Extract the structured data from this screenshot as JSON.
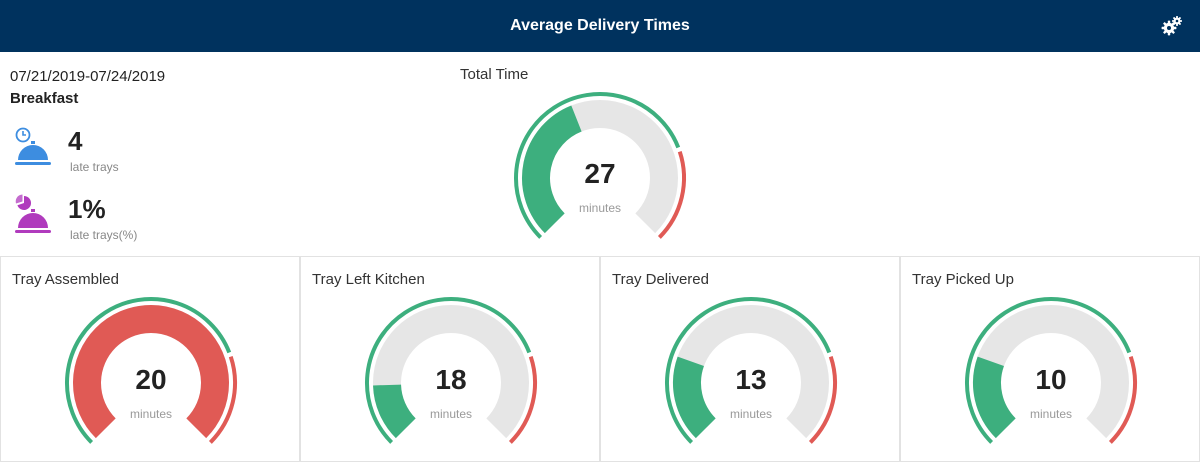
{
  "header": {
    "title": "Average Delivery Times",
    "settings_icon": "gears-icon"
  },
  "summary": {
    "date_range": "07/21/2019-07/24/2019",
    "meal": "Breakfast",
    "late_trays": {
      "value": "4",
      "label": "late trays",
      "icon": "clock-cloche-icon",
      "color": "#3d8de0"
    },
    "late_trays_pct": {
      "value": "1%",
      "label": "late trays(%)",
      "icon": "pie-cloche-icon",
      "color": "#b03bbd"
    }
  },
  "colors": {
    "good": "#3daf7e",
    "bad": "#e05a55",
    "track": "#e6e6e6",
    "header_bg": "#00325e"
  },
  "main_gauge": {
    "title": "Total Time",
    "value": "27",
    "unit": "minutes",
    "fill_fraction": 0.42,
    "fill_color": "good"
  },
  "gauges": [
    {
      "title": "Tray Assembled",
      "value": "20",
      "unit": "minutes",
      "fill_fraction": 1.0,
      "fill_color": "bad"
    },
    {
      "title": "Tray Left Kitchen",
      "value": "18",
      "unit": "minutes",
      "fill_fraction": 0.16,
      "fill_color": "good"
    },
    {
      "title": "Tray Delivered",
      "value": "13",
      "unit": "minutes",
      "fill_fraction": 0.24,
      "fill_color": "good"
    },
    {
      "title": "Tray Picked Up",
      "value": "10",
      "unit": "minutes",
      "fill_fraction": 0.24,
      "fill_color": "good"
    }
  ]
}
